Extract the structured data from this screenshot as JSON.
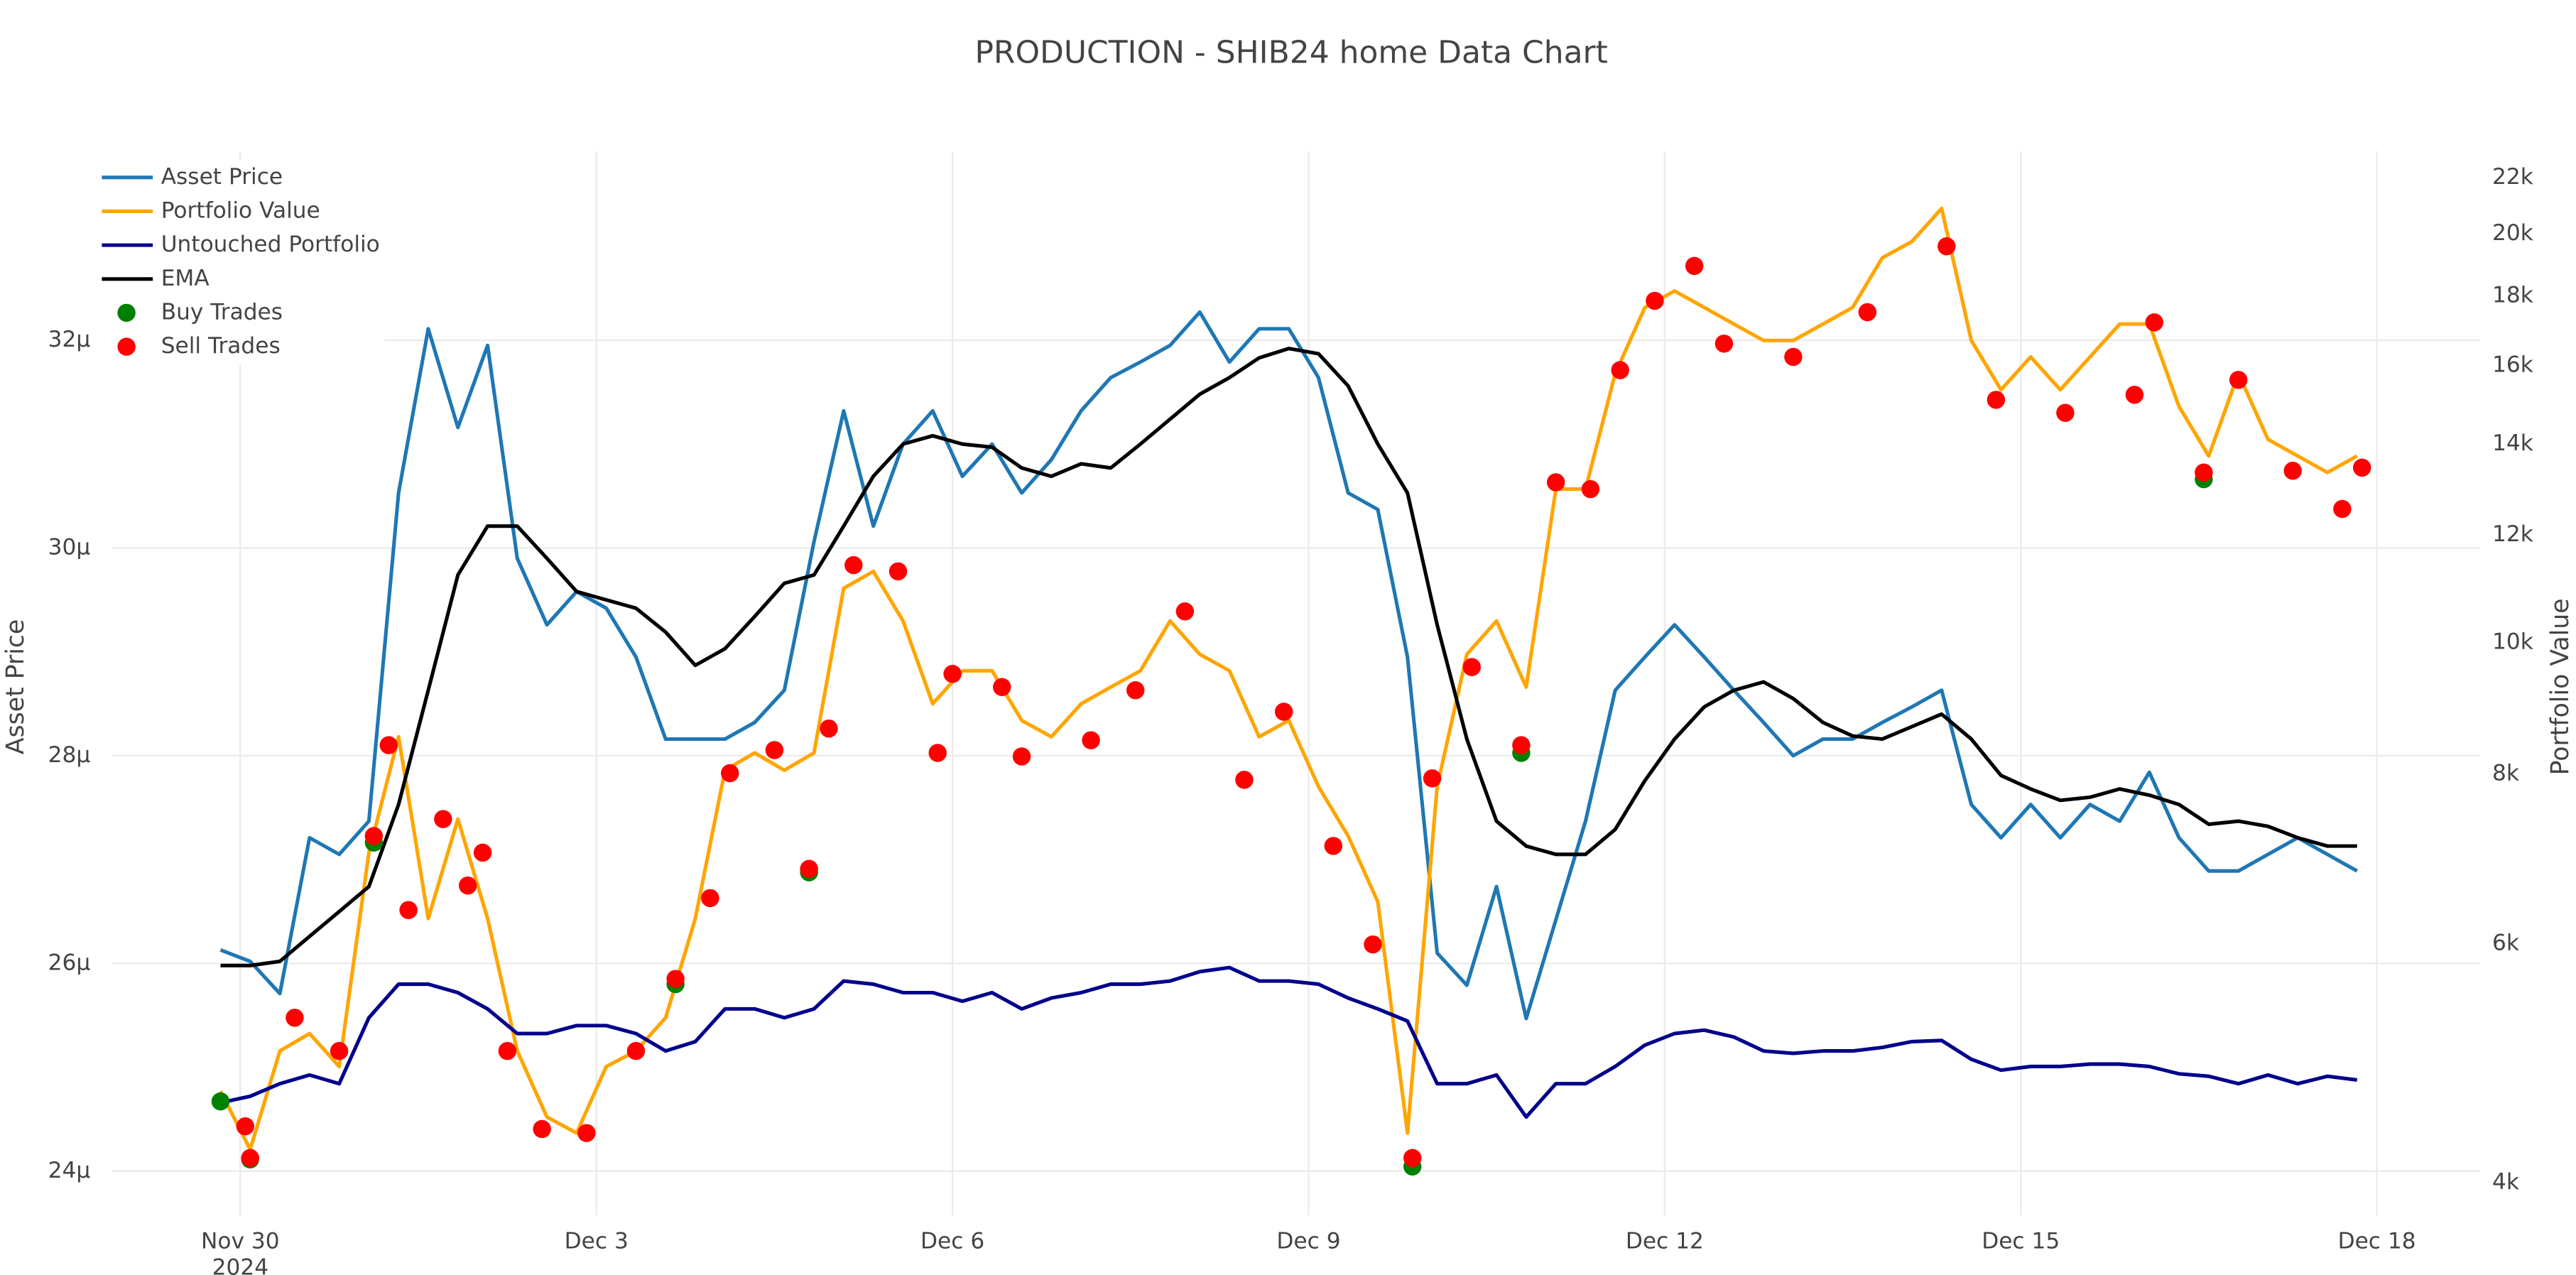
{
  "chart_data": {
    "type": "line",
    "title": "PRODUCTION - SHIB24 home Data Chart",
    "y_label": "Asset Price",
    "y2_label": "Portfolio Value",
    "xtick_year": "2024",
    "legend": "top-left",
    "grid": true,
    "y2log": true,
    "xlim": [
      "2024-11-28 22:00",
      "2024-12-18 21:00"
    ],
    "xticks": [
      {
        "value": "2024-11-30 00:00",
        "label": "Nov 30"
      },
      {
        "value": "2024-12-03 00:00",
        "label": "Dec 3"
      },
      {
        "value": "2024-12-06 00:00",
        "label": "Dec 6"
      },
      {
        "value": "2024-12-09 00:00",
        "label": "Dec 9"
      },
      {
        "value": "2024-12-12 00:00",
        "label": "Dec 12"
      },
      {
        "value": "2024-12-15 00:00",
        "label": "Dec 15"
      },
      {
        "value": "2024-12-18 00:00",
        "label": "Dec 18"
      }
    ],
    "ylim": [
      2.357e-05,
      3.382e-05
    ],
    "yticks": [
      {
        "value": 2.4e-05,
        "label": "24μ"
      },
      {
        "value": 2.6e-05,
        "label": "26μ"
      },
      {
        "value": 2.8e-05,
        "label": "28μ"
      },
      {
        "value": 3e-05,
        "label": "30μ"
      },
      {
        "value": 3.2e-05,
        "label": "32μ"
      }
    ],
    "y2lim": [
      3780,
      23010
    ],
    "y2ticks": [
      {
        "value": 4000,
        "label": "4k"
      },
      {
        "value": 6000,
        "label": "6k"
      },
      {
        "value": 8000,
        "label": "8k"
      },
      {
        "value": 10000,
        "label": "10k"
      },
      {
        "value": 12000,
        "label": "12k"
      },
      {
        "value": 14000,
        "label": "14k"
      },
      {
        "value": 16000,
        "label": "16k"
      },
      {
        "value": 18000,
        "label": "18k"
      },
      {
        "value": 20000,
        "label": "20k"
      },
      {
        "value": 22000,
        "label": "22k"
      }
    ],
    "x": [
      "2024-11-29 20:00",
      "2024-11-30 02:00",
      "2024-11-30 08:00",
      "2024-11-30 14:00",
      "2024-11-30 20:00",
      "2024-12-01 02:00",
      "2024-12-01 08:00",
      "2024-12-01 14:00",
      "2024-12-01 20:00",
      "2024-12-02 02:00",
      "2024-12-02 08:00",
      "2024-12-02 14:00",
      "2024-12-02 20:00",
      "2024-12-03 02:00",
      "2024-12-03 08:00",
      "2024-12-03 14:00",
      "2024-12-03 20:00",
      "2024-12-04 02:00",
      "2024-12-04 08:00",
      "2024-12-04 14:00",
      "2024-12-04 20:00",
      "2024-12-05 02:00",
      "2024-12-05 08:00",
      "2024-12-05 14:00",
      "2024-12-05 20:00",
      "2024-12-06 02:00",
      "2024-12-06 08:00",
      "2024-12-06 14:00",
      "2024-12-06 20:00",
      "2024-12-07 02:00",
      "2024-12-07 08:00",
      "2024-12-07 14:00",
      "2024-12-07 20:00",
      "2024-12-08 02:00",
      "2024-12-08 08:00",
      "2024-12-08 14:00",
      "2024-12-08 20:00",
      "2024-12-09 02:00",
      "2024-12-09 08:00",
      "2024-12-09 14:00",
      "2024-12-09 20:00",
      "2024-12-10 02:00",
      "2024-12-10 08:00",
      "2024-12-10 14:00",
      "2024-12-10 20:00",
      "2024-12-11 02:00",
      "2024-12-11 08:00",
      "2024-12-11 14:00",
      "2024-12-11 20:00",
      "2024-12-12 02:00",
      "2024-12-12 08:00",
      "2024-12-12 14:00",
      "2024-12-12 20:00",
      "2024-12-13 02:00",
      "2024-12-13 08:00",
      "2024-12-13 14:00",
      "2024-12-13 20:00",
      "2024-12-14 02:00",
      "2024-12-14 08:00",
      "2024-12-14 14:00",
      "2024-12-14 20:00",
      "2024-12-15 02:00",
      "2024-12-15 08:00",
      "2024-12-15 14:00",
      "2024-12-15 20:00",
      "2024-12-16 02:00",
      "2024-12-16 08:00",
      "2024-12-16 14:00",
      "2024-12-16 20:00",
      "2024-12-17 02:00",
      "2024-12-17 08:00",
      "2024-12-17 14:00",
      "2024-12-17 20:00"
    ],
    "series": [
      {
        "name": "Asset Price",
        "color": "#1f77b4",
        "mode": "lines",
        "axis": "y",
        "values": [
          2.613e-05,
          2.602e-05,
          2.571e-05,
          2.721e-05,
          2.705e-05,
          2.737e-05,
          3.053e-05,
          3.211e-05,
          3.116e-05,
          3.195e-05,
          2.99e-05,
          2.926e-05,
          2.958e-05,
          2.942e-05,
          2.895e-05,
          2.816e-05,
          2.816e-05,
          2.816e-05,
          2.832e-05,
          2.863e-05,
          3.006e-05,
          3.132e-05,
          3.021e-05,
          3.1e-05,
          3.132e-05,
          3.069e-05,
          3.1e-05,
          3.053e-05,
          3.085e-05,
          3.132e-05,
          3.164e-05,
          3.179e-05,
          3.195e-05,
          3.227e-05,
          3.179e-05,
          3.211e-05,
          3.211e-05,
          3.164e-05,
          3.053e-05,
          3.037e-05,
          2.895e-05,
          2.61e-05,
          2.579e-05,
          2.674e-05,
          2.547e-05,
          2.642e-05,
          2.737e-05,
          2.863e-05,
          2.895e-05,
          2.926e-05,
          2.895e-05,
          2.863e-05,
          2.832e-05,
          2.8e-05,
          2.816e-05,
          2.816e-05,
          2.832e-05,
          2.847e-05,
          2.863e-05,
          2.753e-05,
          2.721e-05,
          2.753e-05,
          2.721e-05,
          2.753e-05,
          2.737e-05,
          2.784e-05,
          2.721e-05,
          2.689e-05,
          2.689e-05,
          2.705e-05,
          2.721e-05,
          2.705e-05,
          2.689e-05
        ]
      },
      {
        "name": "Portfolio Value",
        "color": "#ffa500",
        "mode": "lines",
        "axis": "y2",
        "values": [
          4670,
          4230,
          5000,
          5150,
          4870,
          7000,
          8520,
          6260,
          7410,
          6260,
          5000,
          4470,
          4350,
          4870,
          5000,
          5290,
          6260,
          8050,
          8290,
          8050,
          8290,
          10960,
          11280,
          10370,
          9010,
          9530,
          9530,
          8760,
          8520,
          9010,
          9270,
          9530,
          10370,
          9800,
          9530,
          8520,
          8760,
          7830,
          7200,
          6440,
          4350,
          7830,
          9800,
          10370,
          9270,
          12970,
          12970,
          15780,
          17650,
          18150,
          17650,
          17160,
          16690,
          16690,
          17160,
          17650,
          19200,
          19740,
          20880,
          16690,
          15350,
          16230,
          15350,
          16230,
          17160,
          17160,
          14920,
          13720,
          15780,
          14110,
          13720,
          13340,
          13720
        ]
      },
      {
        "name": "Untouched Portfolio",
        "color": "#00008b",
        "mode": "lines",
        "axis": "y2",
        "values": [
          4580,
          4630,
          4730,
          4800,
          4730,
          5290,
          5600,
          5600,
          5520,
          5370,
          5150,
          5150,
          5220,
          5220,
          5150,
          5000,
          5080,
          5370,
          5370,
          5290,
          5370,
          5630,
          5600,
          5520,
          5520,
          5440,
          5520,
          5370,
          5470,
          5520,
          5600,
          5600,
          5630,
          5720,
          5760,
          5630,
          5630,
          5600,
          5470,
          5370,
          5260,
          4730,
          4730,
          4800,
          4470,
          4730,
          4730,
          4870,
          5050,
          5150,
          5180,
          5120,
          5000,
          4980,
          5000,
          5000,
          5030,
          5080,
          5090,
          4930,
          4840,
          4870,
          4870,
          4890,
          4890,
          4870,
          4810,
          4790,
          4730,
          4800,
          4730,
          4790,
          4760
        ]
      },
      {
        "name": "EMA",
        "color": "#000000",
        "mode": "lines",
        "axis": "y",
        "values": [
          2.598e-05,
          2.598e-05,
          2.602e-05,
          2.626e-05,
          2.65e-05,
          2.674e-05,
          2.753e-05,
          2.863e-05,
          2.974e-05,
          3.021e-05,
          3.021e-05,
          2.99e-05,
          2.958e-05,
          2.95e-05,
          2.942e-05,
          2.919e-05,
          2.887e-05,
          2.903e-05,
          2.934e-05,
          2.966e-05,
          2.974e-05,
          3.021e-05,
          3.069e-05,
          3.1e-05,
          3.108e-05,
          3.1e-05,
          3.097e-05,
          3.077e-05,
          3.069e-05,
          3.081e-05,
          3.077e-05,
          3.1e-05,
          3.124e-05,
          3.148e-05,
          3.164e-05,
          3.183e-05,
          3.192e-05,
          3.187e-05,
          3.156e-05,
          3.1e-05,
          3.053e-05,
          2.926e-05,
          2.816e-05,
          2.737e-05,
          2.713e-05,
          2.705e-05,
          2.705e-05,
          2.729e-05,
          2.776e-05,
          2.816e-05,
          2.847e-05,
          2.863e-05,
          2.871e-05,
          2.855e-05,
          2.832e-05,
          2.819e-05,
          2.816e-05,
          2.828e-05,
          2.84e-05,
          2.816e-05,
          2.781e-05,
          2.768e-05,
          2.757e-05,
          2.76e-05,
          2.768e-05,
          2.762e-05,
          2.753e-05,
          2.734e-05,
          2.737e-05,
          2.732e-05,
          2.721e-05,
          2.713e-05,
          2.713e-05
        ]
      },
      {
        "name": "Buy Trades",
        "color": "#008000",
        "mode": "markers",
        "axis": "y2",
        "x": [
          "2024-11-29 20:00",
          "2024-11-30 02:00",
          "2024-12-01 03:00",
          "2024-12-03 16:00",
          "2024-12-04 19:00",
          "2024-12-09 21:00",
          "2024-12-10 19:00",
          "2024-12-16 13:00"
        ],
        "values": [
          4590,
          4160,
          7120,
          5600,
          6770,
          4110,
          8290,
          13190
        ]
      },
      {
        "name": "Sell Trades",
        "color": "#ff0000",
        "mode": "markers",
        "axis": "y2",
        "x": [
          "2024-11-30 01:00",
          "2024-11-30 02:00",
          "2024-11-30 11:00",
          "2024-11-30 20:00",
          "2024-12-01 03:00",
          "2024-12-01 06:00",
          "2024-12-01 10:00",
          "2024-12-01 17:00",
          "2024-12-01 22:00",
          "2024-12-02 01:00",
          "2024-12-02 06:00",
          "2024-12-02 13:00",
          "2024-12-02 22:00",
          "2024-12-03 08:00",
          "2024-12-03 16:00",
          "2024-12-03 23:00",
          "2024-12-04 03:00",
          "2024-12-04 12:00",
          "2024-12-04 19:00",
          "2024-12-04 23:00",
          "2024-12-05 04:00",
          "2024-12-05 13:00",
          "2024-12-05 21:00",
          "2024-12-06 00:00",
          "2024-12-06 10:00",
          "2024-12-06 14:00",
          "2024-12-07 04:00",
          "2024-12-07 13:00",
          "2024-12-07 23:00",
          "2024-12-08 11:00",
          "2024-12-08 19:00",
          "2024-12-09 05:00",
          "2024-12-09 13:00",
          "2024-12-09 21:00",
          "2024-12-10 01:00",
          "2024-12-10 09:00",
          "2024-12-10 19:00",
          "2024-12-11 02:00",
          "2024-12-11 09:00",
          "2024-12-11 15:00",
          "2024-12-11 22:00",
          "2024-12-12 06:00",
          "2024-12-12 12:00",
          "2024-12-13 02:00",
          "2024-12-13 17:00",
          "2024-12-14 09:00",
          "2024-12-14 19:00",
          "2024-12-15 09:00",
          "2024-12-15 23:00",
          "2024-12-16 03:00",
          "2024-12-16 13:00",
          "2024-12-16 20:00",
          "2024-12-17 07:00",
          "2024-12-17 17:00",
          "2024-12-17 21:00"
        ],
        "values": [
          4400,
          4170,
          5290,
          5000,
          7200,
          8400,
          6350,
          7410,
          6620,
          7000,
          5000,
          4380,
          4350,
          5000,
          5650,
          6480,
          8010,
          8330,
          6810,
          8640,
          11400,
          11280,
          8290,
          9480,
          9270,
          8240,
          8470,
          9220,
          10540,
          7920,
          8890,
          7080,
          5990,
          4170,
          7940,
          9590,
          8400,
          13120,
          12970,
          15870,
          17850,
          18940,
          16600,
          16230,
          17510,
          19580,
          15090,
          14760,
          15220,
          17210,
          13340,
          15610,
          13380,
          12540,
          13450
        ]
      }
    ]
  }
}
